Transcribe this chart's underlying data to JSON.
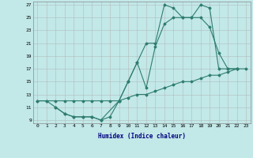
{
  "xlabel": "Humidex (Indice chaleur)",
  "ylabel": "",
  "background_color": "#c2e8e8",
  "grid_color": "#b0b0b0",
  "line_color": "#2e7d6e",
  "xlim": [
    -0.5,
    23.5
  ],
  "ylim": [
    8.5,
    27.5
  ],
  "xticks": [
    0,
    1,
    2,
    3,
    4,
    5,
    6,
    7,
    8,
    9,
    10,
    11,
    12,
    13,
    14,
    15,
    16,
    17,
    18,
    19,
    20,
    21,
    22,
    23
  ],
  "yticks": [
    9,
    11,
    13,
    15,
    17,
    19,
    21,
    23,
    25,
    27
  ],
  "line1_x": [
    0,
    1,
    2,
    3,
    4,
    5,
    6,
    7,
    8,
    9,
    10,
    11,
    12,
    13,
    14,
    15,
    16,
    17,
    18,
    19,
    20,
    21,
    22,
    23
  ],
  "line1_y": [
    12,
    12,
    12,
    12,
    12,
    12,
    12,
    12,
    12,
    12,
    12.5,
    13,
    13,
    13.5,
    14,
    14.5,
    15,
    15,
    15.5,
    16,
    16,
    16.5,
    17,
    17
  ],
  "line2_x": [
    0,
    1,
    2,
    3,
    4,
    5,
    6,
    7,
    8,
    9,
    10,
    11,
    12,
    13,
    14,
    15,
    16,
    17,
    18,
    19,
    20,
    21,
    22
  ],
  "line2_y": [
    12,
    12,
    11,
    10,
    9.5,
    9.5,
    9.5,
    9,
    9.5,
    12,
    15,
    18,
    14,
    20.5,
    24,
    25,
    25,
    25,
    25,
    23.5,
    19.5,
    17,
    17
  ],
  "line3_x": [
    2,
    3,
    4,
    5,
    6,
    7,
    9,
    10,
    11,
    12,
    13,
    14,
    15,
    16,
    17,
    18,
    19,
    20,
    21,
    22
  ],
  "line3_y": [
    11,
    10,
    9.5,
    9.5,
    9.5,
    9,
    12,
    15,
    18,
    21,
    21,
    27,
    26.5,
    25,
    25,
    27,
    26.5,
    17,
    17,
    17
  ]
}
